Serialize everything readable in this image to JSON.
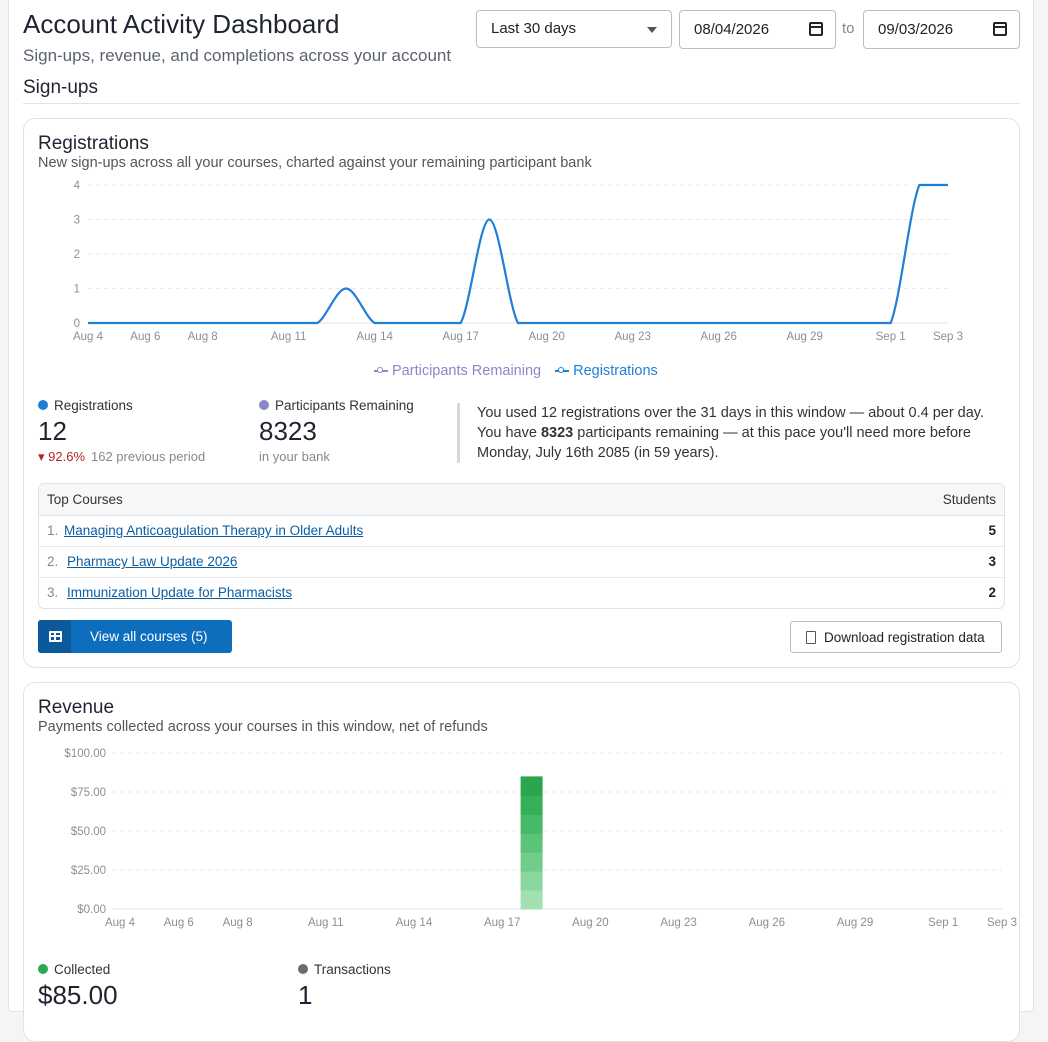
{
  "header": {
    "title": "Account Activity Dashboard",
    "subtitle": "Sign-ups, revenue, and completions across your account",
    "range_select": "Last 30 days",
    "date_from": "08/04/2026",
    "to_label": "to",
    "date_to": "09/03/2026"
  },
  "section": {
    "title": "Sign-ups"
  },
  "registrations_card": {
    "title": "Registrations",
    "subtitle": "New sign-ups across all your courses, charted against your remaining participant bank",
    "legend": {
      "participants": "Participants Remaining",
      "registrations": "Registrations"
    },
    "stats": {
      "registrations_label": "Registrations",
      "registrations_value": "12",
      "change": "▾ 92.6%",
      "previous": "162 previous period",
      "participants_label": "Participants Remaining",
      "participants_value": "8323",
      "participants_foot": "in your bank"
    },
    "insight": {
      "line1": "You used 12 registrations over the 31 days in this window — about 0.4 per day.",
      "pre": "You have ",
      "bold": "8323",
      "post": " participants remaining — at this pace you'll need more before Monday, July 16th 2085 (in 59 years)."
    },
    "table": {
      "col1": "Top Courses",
      "col2": "Students",
      "rows": [
        {
          "rank": "1.",
          "course": "Managing Anticoagulation Therapy in Older Adults",
          "students": "5"
        },
        {
          "rank": "2.",
          "course": "Pharmacy Law Update 2026",
          "students": "3"
        },
        {
          "rank": "3.",
          "course": "Immunization Update for Pharmacists",
          "students": "2"
        }
      ]
    },
    "view_all_label": "View all courses (5)",
    "download_label": "Download registration data"
  },
  "revenue_card": {
    "title": "Revenue",
    "subtitle": "Payments collected across your courses in this window, net of refunds",
    "stats": {
      "collected_label": "Collected",
      "collected_value": "$85.00",
      "transactions_label": "Transactions",
      "transactions_value": "1"
    }
  },
  "colors": {
    "registrations": "#1f7fd6",
    "participants": "#8a87c9",
    "collected": "#2ea84f",
    "transactions": "#6b6b6b",
    "primary_button": "#0d6ebd"
  },
  "chart_data": [
    {
      "type": "line",
      "x": [
        "Aug 4",
        "Aug 5",
        "Aug 6",
        "Aug 7",
        "Aug 8",
        "Aug 9",
        "Aug 10",
        "Aug 11",
        "Aug 12",
        "Aug 13",
        "Aug 14",
        "Aug 15",
        "Aug 16",
        "Aug 17",
        "Aug 18",
        "Aug 19",
        "Aug 20",
        "Aug 21",
        "Aug 22",
        "Aug 23",
        "Aug 24",
        "Aug 25",
        "Aug 26",
        "Aug 27",
        "Aug 28",
        "Aug 29",
        "Aug 30",
        "Aug 31",
        "Sep 1",
        "Sep 2",
        "Sep 3"
      ],
      "x_ticks": [
        "Aug 4",
        "Aug 6",
        "Aug 8",
        "Aug 11",
        "Aug 14",
        "Aug 17",
        "Aug 20",
        "Aug 23",
        "Aug 26",
        "Aug 29",
        "Sep 1",
        "Sep 3"
      ],
      "series": [
        {
          "name": "Registrations",
          "values": [
            0,
            0,
            0,
            0,
            0,
            0,
            0,
            0,
            0,
            1,
            0,
            0,
            0,
            0,
            3,
            0,
            0,
            0,
            0,
            0,
            0,
            0,
            0,
            0,
            0,
            0,
            0,
            0,
            0,
            4,
            4
          ]
        }
      ],
      "y_ticks": [
        "0",
        "1",
        "2",
        "3",
        "4"
      ],
      "ylim": [
        0,
        4
      ],
      "grid": true,
      "legend": "bottom-center"
    },
    {
      "type": "bar",
      "categories": [
        "Aug 4",
        "Aug 5",
        "Aug 6",
        "Aug 7",
        "Aug 8",
        "Aug 9",
        "Aug 10",
        "Aug 11",
        "Aug 12",
        "Aug 13",
        "Aug 14",
        "Aug 15",
        "Aug 16",
        "Aug 17",
        "Aug 18",
        "Aug 19",
        "Aug 20",
        "Aug 21",
        "Aug 22",
        "Aug 23",
        "Aug 24",
        "Aug 25",
        "Aug 26",
        "Aug 27",
        "Aug 28",
        "Aug 29",
        "Aug 30",
        "Aug 31",
        "Sep 1",
        "Sep 2",
        "Sep 3"
      ],
      "x_ticks": [
        "Aug 4",
        "Aug 6",
        "Aug 8",
        "Aug 11",
        "Aug 14",
        "Aug 17",
        "Aug 20",
        "Aug 23",
        "Aug 26",
        "Aug 29",
        "Sep 1",
        "Sep 3"
      ],
      "values": [
        0,
        0,
        0,
        0,
        0,
        0,
        0,
        0,
        0,
        0,
        0,
        0,
        0,
        0,
        85,
        0,
        0,
        0,
        0,
        0,
        0,
        0,
        0,
        0,
        0,
        0,
        0,
        0,
        0,
        0,
        0
      ],
      "y_ticks": [
        "$0.00",
        "$25.00",
        "$50.00",
        "$75.00",
        "$100.00"
      ],
      "ylim": [
        0,
        100
      ],
      "grid": true
    }
  ]
}
